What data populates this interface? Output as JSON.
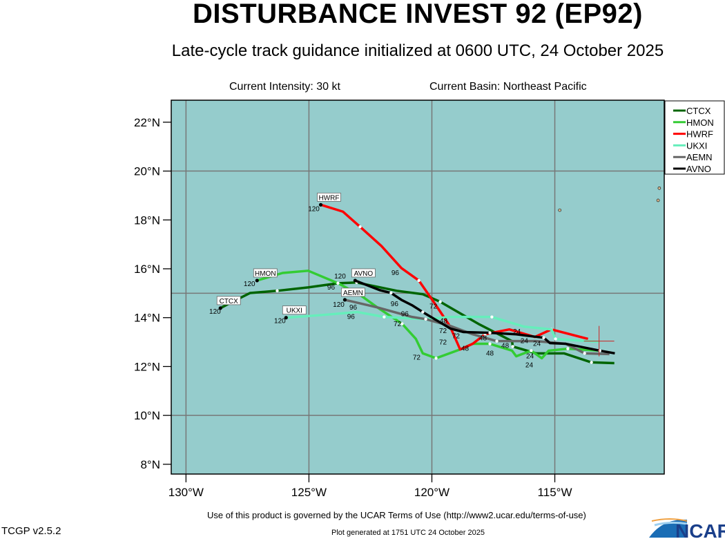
{
  "title": "DISTURBANCE INVEST 92 (EP92)",
  "subtitle": "Late-cycle track guidance initialized at 0600 UTC, 24 October 2025",
  "current_intensity": "Current Intensity: 30 kt",
  "current_basin": "Current Basin: Northeast Pacific",
  "footer": {
    "terms": "Use of this product is governed by the UCAR Terms of Use (http://www2.ucar.edu/terms-of-use)",
    "version": "TCGP v2.5.2",
    "generated": "Plot generated at 1751 UTC   24 October 2025",
    "logo_text": "NCAR"
  },
  "chart_data": {
    "type": "map-track",
    "xlim": [
      -130.6,
      -110.55
    ],
    "ylim": [
      7.6,
      22.9
    ],
    "lat_ticks": [
      "8°N",
      "10°N",
      "12°N",
      "14°N",
      "16°N",
      "18°N",
      "20°N",
      "22°N"
    ],
    "lat_tick_values": [
      8,
      10,
      12,
      14,
      16,
      18,
      20,
      22
    ],
    "lon_ticks": [
      "130°W",
      "125°W",
      "120°W",
      "115°W"
    ],
    "lon_tick_values": [
      -130,
      -125,
      -120,
      -115
    ],
    "grid_lat": [
      10,
      15,
      20
    ],
    "grid_lon": [
      -130,
      -125,
      -120,
      -115
    ],
    "ocean_color": "#95cccc",
    "legend_placement": "top-right, outside",
    "current_position": {
      "lon": -113.2,
      "lat": 13.04,
      "marker": "red-cross"
    },
    "series": [
      {
        "name": "CTCX",
        "color": "#006400",
        "track": [
          [
            -112.58,
            12.14
          ],
          [
            -113.51,
            12.17
          ],
          [
            -114.63,
            12.54
          ],
          [
            -115.76,
            12.54
          ],
          [
            -116.71,
            12.82
          ],
          [
            -116.74,
            13.04
          ],
          [
            -118.06,
            13.72
          ],
          [
            -119.66,
            14.65
          ],
          [
            -120.37,
            14.96
          ],
          [
            -121.43,
            15.1
          ],
          [
            -123.06,
            15.44
          ],
          [
            -123.82,
            15.41
          ],
          [
            -125.03,
            15.24
          ],
          [
            -126.29,
            15.1
          ],
          [
            -127.39,
            15.01
          ],
          [
            -128.17,
            14.62
          ],
          [
            -128.6,
            14.39
          ]
        ]
      },
      {
        "name": "HMON",
        "color": "#33cc33",
        "track": [
          [
            -113.17,
            12.65
          ],
          [
            -114.47,
            12.73
          ],
          [
            -115.25,
            12.65
          ],
          [
            -115.53,
            12.34
          ],
          [
            -115.96,
            12.65
          ],
          [
            -116.57,
            12.42
          ],
          [
            -116.74,
            12.65
          ],
          [
            -117.64,
            12.93
          ],
          [
            -118.34,
            12.93
          ],
          [
            -118.85,
            12.7
          ],
          [
            -119.83,
            12.34
          ],
          [
            -120.37,
            12.54
          ],
          [
            -120.65,
            13.13
          ],
          [
            -121.21,
            13.75
          ],
          [
            -122.22,
            14.42
          ],
          [
            -122.92,
            14.93
          ],
          [
            -123.82,
            15.41
          ],
          [
            -125.03,
            15.92
          ],
          [
            -126.07,
            15.83
          ],
          [
            -127.11,
            15.52
          ]
        ]
      },
      {
        "name": "HWRF",
        "color": "#ff0000",
        "track": [
          [
            -113.65,
            13.13
          ],
          [
            -115.14,
            13.52
          ],
          [
            -115.81,
            13.21
          ],
          [
            -116.85,
            13.52
          ],
          [
            -117.84,
            13.32
          ],
          [
            -118.34,
            12.93
          ],
          [
            -118.85,
            12.7
          ],
          [
            -119.27,
            13.66
          ],
          [
            -119.89,
            14.59
          ],
          [
            -120.22,
            15.07
          ],
          [
            -120.53,
            15.52
          ],
          [
            -121.24,
            16.03
          ],
          [
            -122.05,
            16.93
          ],
          [
            -122.92,
            17.72
          ],
          [
            -123.62,
            18.34
          ],
          [
            -124.52,
            18.62
          ]
        ]
      },
      {
        "name": "UKXI",
        "color": "#66eebb",
        "track": [
          [
            -113.17,
            13.01
          ],
          [
            -114.97,
            13.13
          ],
          [
            -115.14,
            13.52
          ],
          [
            -116.24,
            13.63
          ],
          [
            -117.56,
            14.03
          ],
          [
            -119.24,
            14.03
          ],
          [
            -120.25,
            13.94
          ],
          [
            -121.94,
            14.03
          ],
          [
            -123.03,
            14.23
          ],
          [
            -124.44,
            14.11
          ],
          [
            -125.93,
            14.0
          ]
        ]
      },
      {
        "name": "AEMN",
        "color": "#666666",
        "track": [
          [
            -112.78,
            12.51
          ],
          [
            -113.79,
            12.54
          ],
          [
            -114.55,
            12.93
          ],
          [
            -115.76,
            13.04
          ],
          [
            -117.36,
            13.04
          ],
          [
            -118.34,
            13.32
          ],
          [
            -119.24,
            13.66
          ],
          [
            -120.25,
            13.94
          ],
          [
            -120.81,
            14.03
          ],
          [
            -122.22,
            14.42
          ],
          [
            -123.54,
            14.73
          ]
        ]
      },
      {
        "name": "AVNO",
        "color": "#000000",
        "track": [
          [
            -112.56,
            12.54
          ],
          [
            -113.17,
            12.65
          ],
          [
            -114.55,
            12.93
          ],
          [
            -115.2,
            12.96
          ],
          [
            -115.45,
            13.18
          ],
          [
            -115.96,
            13.24
          ],
          [
            -116.57,
            13.32
          ],
          [
            -117.64,
            13.38
          ],
          [
            -118.71,
            13.41
          ],
          [
            -119.24,
            13.55
          ],
          [
            -120.37,
            14.23
          ],
          [
            -120.81,
            14.51
          ],
          [
            -121.24,
            14.73
          ],
          [
            -121.66,
            15.01
          ],
          [
            -122.13,
            15.13
          ],
          [
            -123.12,
            15.52
          ]
        ]
      }
    ],
    "hour_labels": [
      {
        "text": "120",
        "lon": -124.8,
        "lat": 18.48
      },
      {
        "text": "96",
        "lon": -121.49,
        "lat": 15.86
      },
      {
        "text": "72",
        "lon": -119.94,
        "lat": 14.48
      },
      {
        "text": "120",
        "lon": -128.82,
        "lat": 14.28
      },
      {
        "text": "96",
        "lon": -124.1,
        "lat": 15.27
      },
      {
        "text": "120",
        "lon": -127.42,
        "lat": 15.41
      },
      {
        "text": "72",
        "lon": -120.62,
        "lat": 12.39
      },
      {
        "text": "120",
        "lon": -126.18,
        "lat": 13.89
      },
      {
        "text": "96",
        "lon": -123.29,
        "lat": 14.06
      },
      {
        "text": "120",
        "lon": -123.37,
        "lat": 15.41
      },
      {
        "text": "96",
        "lon": -121.52,
        "lat": 14.59
      },
      {
        "text": "120",
        "lon": -123.79,
        "lat": 14.56
      },
      {
        "text": "96",
        "lon": -123.2,
        "lat": 14.76
      },
      {
        "text": "72",
        "lon": -121.4,
        "lat": 13.77
      },
      {
        "text": "96",
        "lon": -121.1,
        "lat": 13.86
      },
      {
        "text": "48",
        "lon": -119.52,
        "lat": 13.89
      },
      {
        "text": "72",
        "lon": -119.55,
        "lat": 13.48
      },
      {
        "text": "72",
        "lon": -119.55,
        "lat": 13.33
      },
      {
        "text": "72",
        "lon": -119.02,
        "lat": 13.27
      },
      {
        "text": "48",
        "lon": -118.65,
        "lat": 12.76
      },
      {
        "text": "48",
        "lon": -117.92,
        "lat": 13.18
      },
      {
        "text": "48",
        "lon": -117.64,
        "lat": 12.87
      },
      {
        "text": "48",
        "lon": -117.02,
        "lat": 12.87
      },
      {
        "text": "24",
        "lon": -116.54,
        "lat": 13.46
      },
      {
        "text": "24",
        "lon": -116.24,
        "lat": 13.07
      },
      {
        "text": "24",
        "lon": -116.01,
        "lat": 12.76
      },
      {
        "text": "24",
        "lon": -115.73,
        "lat": 12.96
      },
      {
        "text": "24",
        "lon": -116.04,
        "lat": 12.39
      }
    ],
    "islands": [
      [
        -110.8,
        18.8
      ],
      [
        -114.8,
        18.4
      ],
      [
        -110.75,
        19.3
      ]
    ]
  }
}
